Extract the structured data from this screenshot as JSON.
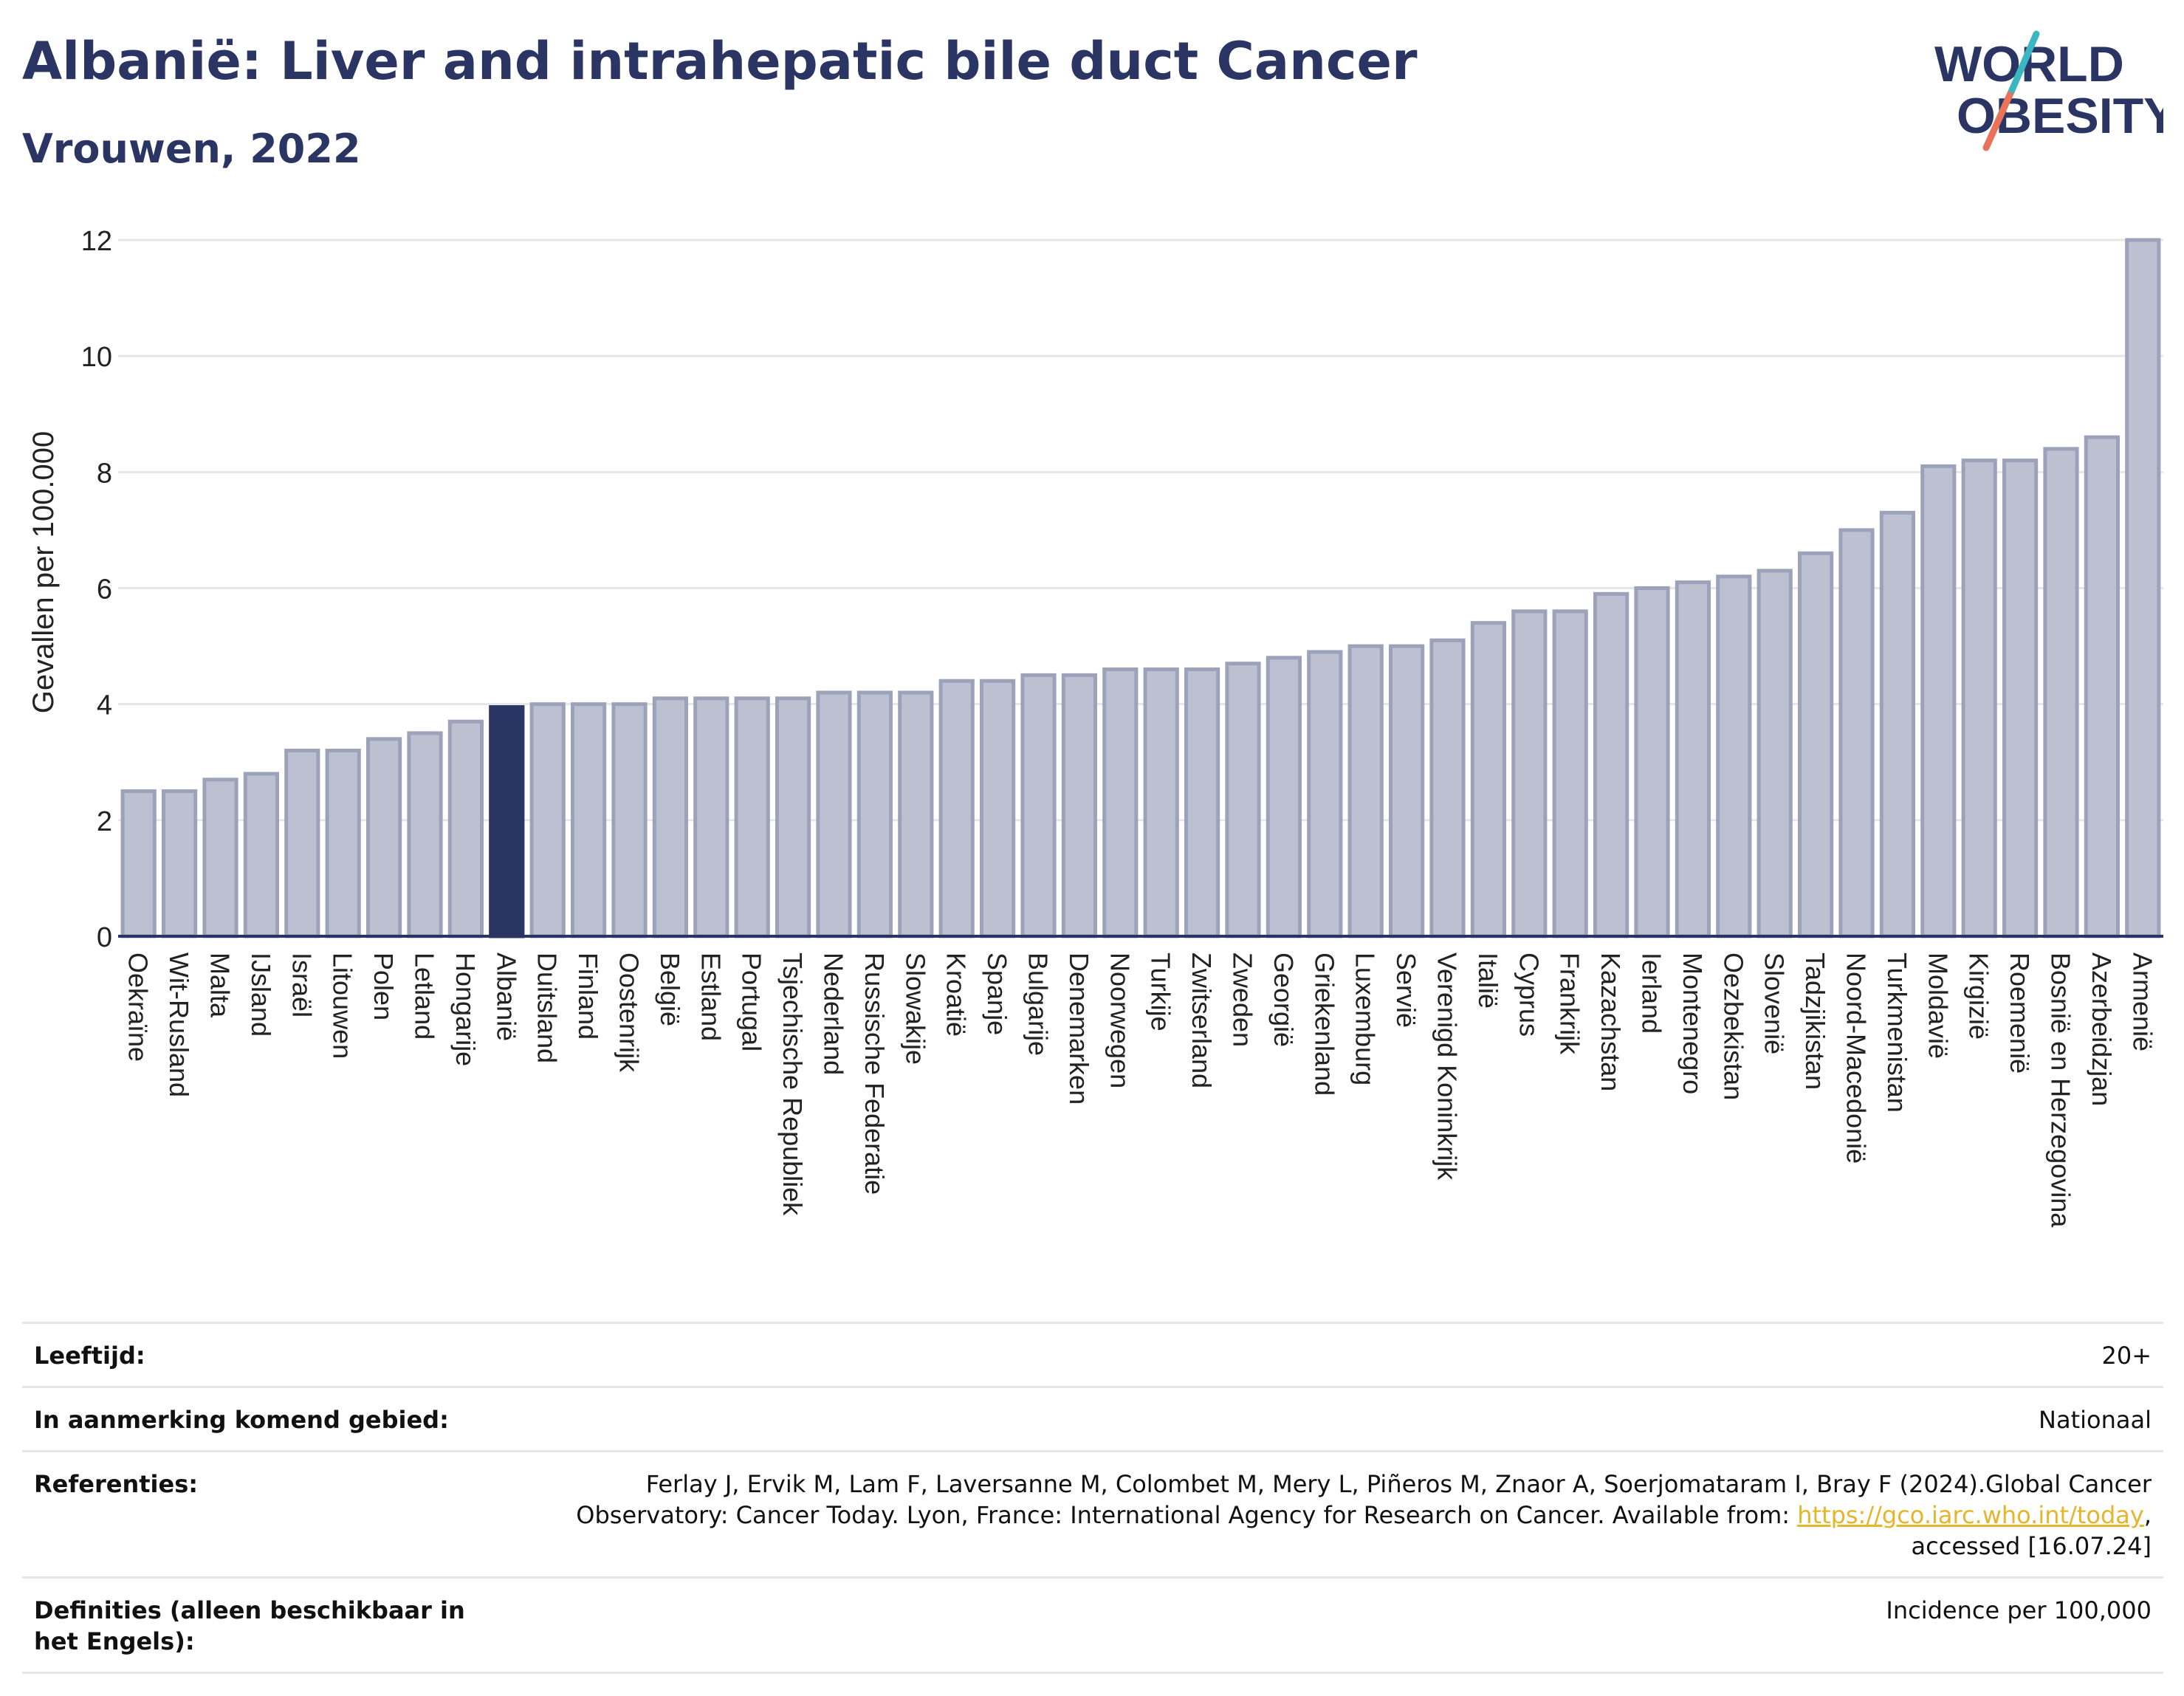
{
  "header": {
    "title": "Albanië: Liver and intrahepatic bile duct Cancer",
    "subtitle": "Vrouwen, 2022"
  },
  "logo": {
    "line1": "WORLD",
    "line2": "OBESITY"
  },
  "colors": {
    "bar": "#bcc0d0",
    "bar_stroke": "#9da2bb",
    "highlight": "#2b3564",
    "grid": "#e6e6e6",
    "axis": "#2b3564"
  },
  "chart_data": {
    "type": "bar",
    "ylabel": "Gevallen per 100.000",
    "ylim": [
      0,
      12
    ],
    "yticks": [
      0,
      2,
      4,
      6,
      8,
      10,
      12
    ],
    "highlight": "Albanië",
    "grid": true,
    "categories": [
      "Oekraïne",
      "Wit-Rusland",
      "Malta",
      "IJsland",
      "Israël",
      "Litouwen",
      "Polen",
      "Letland",
      "Hongarije",
      "Albanië",
      "Duitsland",
      "Finland",
      "Oostenrijk",
      "België",
      "Estland",
      "Portugal",
      "Tsjechische Republiek",
      "Nederland",
      "Russische Federatie",
      "Slowakije",
      "Kroatië",
      "Spanje",
      "Bulgarije",
      "Denemarken",
      "Noorwegen",
      "Turkije",
      "Zwitserland",
      "Zweden",
      "Georgië",
      "Griekenland",
      "Luxemburg",
      "Servië",
      "Verenigd Koninkrijk",
      "Italië",
      "Cyprus",
      "Frankrijk",
      "Kazachstan",
      "Ierland",
      "Montenegro",
      "Oezbekistan",
      "Slovenië",
      "Tadzjikistan",
      "Noord-Macedonië",
      "Turkmenistan",
      "Moldavië",
      "Kirgizië",
      "Roemenië",
      "Bosnië en Herzegovina",
      "Azerbeidzjan",
      "Armenië"
    ],
    "values": [
      2.5,
      2.5,
      2.7,
      2.8,
      3.2,
      3.2,
      3.4,
      3.5,
      3.7,
      3.95,
      4.0,
      4.0,
      4.0,
      4.1,
      4.1,
      4.1,
      4.1,
      4.2,
      4.2,
      4.2,
      4.4,
      4.4,
      4.5,
      4.5,
      4.6,
      4.6,
      4.6,
      4.7,
      4.8,
      4.9,
      5.0,
      5.0,
      5.1,
      5.4,
      5.6,
      5.6,
      5.9,
      6.0,
      6.1,
      6.2,
      6.3,
      6.6,
      7.0,
      7.3,
      8.1,
      8.2,
      8.2,
      8.4,
      8.6,
      12.0
    ]
  },
  "info": {
    "age_label": "Leeftijd:",
    "age_value": "20+",
    "area_label": "In aanmerking komend gebied:",
    "area_value": "Nationaal",
    "ref_label": "Referenties:",
    "ref_text_1": "Ferlay J, Ervik M, Lam F, Laversanne M, Colombet M, Mery L, Piñeros M, Znaor A, Soerjomataram I, Bray F (2024).Global Cancer Observatory: Cancer Today. Lyon, France: International Agency for Research on Cancer. Available from: ",
    "ref_link": "https://gco.iarc.who.int/today",
    "ref_text_2": ", accessed [16.07.24]",
    "def_label": "Definities (alleen beschikbaar in het Engels):",
    "def_value": "Incidence per 100,000"
  }
}
